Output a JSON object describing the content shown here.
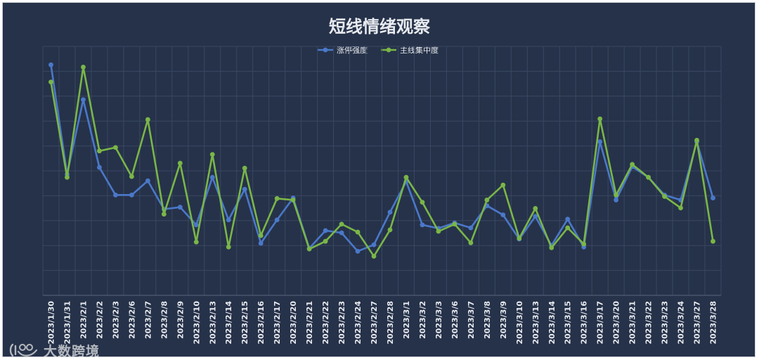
{
  "colors": {
    "background": "#263249",
    "series_blue": "#4a78c9",
    "series_green": "#7ab648"
  },
  "watermark": {
    "text": "大数跨境",
    "logo_icon": "watermark-logo-icon"
  },
  "chart_data": {
    "type": "line",
    "title": "短线情绪观察",
    "legend_position": "top-center",
    "grid": true,
    "ylim": [
      0,
      100
    ],
    "categories": [
      "2023/1/30",
      "2023/1/31",
      "2023/2/1",
      "2023/2/2",
      "2023/2/3",
      "2023/2/6",
      "2023/2/7",
      "2023/2/8",
      "2023/2/9",
      "2023/2/10",
      "2023/2/13",
      "2023/2/14",
      "2023/2/15",
      "2023/2/16",
      "2023/2/17",
      "2023/2/20",
      "2023/2/21",
      "2023/2/22",
      "2023/2/23",
      "2023/2/24",
      "2023/2/27",
      "2023/2/28",
      "2023/3/1",
      "2023/3/2",
      "2023/3/3",
      "2023/3/6",
      "2023/3/7",
      "2023/3/8",
      "2023/3/9",
      "2023/3/10",
      "2023/3/13",
      "2023/3/14",
      "2023/3/15",
      "2023/3/16",
      "2023/3/17",
      "2023/3/20",
      "2023/3/21",
      "2023/3/22",
      "2023/3/23",
      "2023/3/24",
      "2023/3/27",
      "2023/3/28"
    ],
    "series": [
      {
        "name": "涨停强度",
        "color": "#4a78c9",
        "values": [
          92.6,
          48.6,
          78.6,
          51.4,
          40.3,
          40.3,
          46.0,
          34.6,
          35.4,
          28.3,
          47.4,
          30.3,
          42.6,
          20.9,
          30.3,
          39.1,
          18.9,
          26.0,
          25.1,
          17.7,
          20.3,
          33.4,
          45.7,
          28.3,
          26.9,
          29.1,
          27.1,
          36.0,
          32.3,
          22.6,
          31.7,
          20.0,
          30.6,
          19.4,
          61.7,
          38.3,
          51.7,
          47.4,
          40.3,
          38.3,
          61.7,
          39.1
        ],
        "unit": ""
      },
      {
        "name": "主线集中度",
        "color": "#7ab648",
        "values": [
          85.7,
          47.4,
          91.7,
          58.0,
          59.4,
          47.7,
          70.6,
          32.6,
          53.1,
          21.4,
          56.6,
          19.4,
          51.1,
          24.0,
          38.9,
          38.3,
          18.6,
          21.7,
          28.6,
          25.4,
          15.7,
          26.3,
          47.4,
          37.4,
          25.7,
          28.6,
          21.1,
          38.3,
          44.3,
          22.9,
          34.9,
          19.1,
          27.1,
          20.6,
          70.9,
          40.3,
          52.6,
          47.4,
          39.7,
          35.1,
          62.3,
          21.7
        ]
      }
    ]
  }
}
